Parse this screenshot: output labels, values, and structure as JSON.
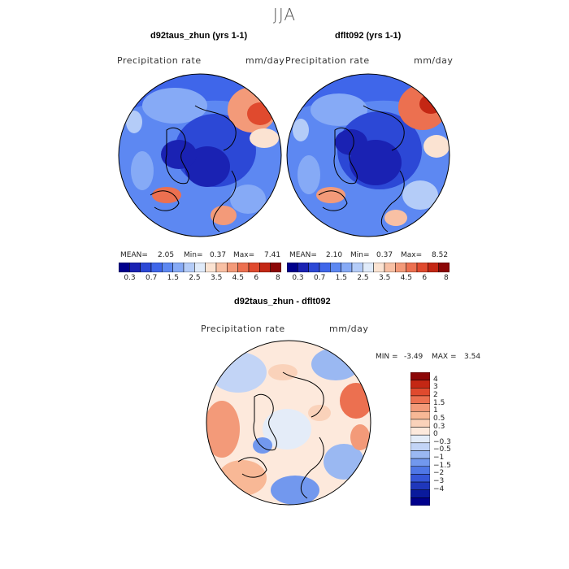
{
  "season": "JJA",
  "panel1": {
    "title": "d92taus_zhun (yrs 1-1)",
    "variable": "Precipitation rate",
    "units": "mm/day",
    "mean_label": "MEAN=",
    "mean": "2.05",
    "min_label": "Min=",
    "min": "0.37",
    "max_label": "Max=",
    "max": "7.41"
  },
  "panel2": {
    "title": "dflt092 (yrs 1-1)",
    "variable": "Precipitation rate",
    "units": "mm/day",
    "mean_label": "MEAN=",
    "mean": "2.10",
    "min_label": "Min=",
    "min": "0.37",
    "max_label": "Max=",
    "max": "8.52"
  },
  "panel3": {
    "title": "d92taus_zhun - dflt092",
    "variable": "Precipitation rate",
    "units": "mm/day",
    "min_label": "MIN =",
    "min": "-3.49",
    "max_label": "MAX =",
    "max": "3.54"
  },
  "abs_colorbar": {
    "colors": [
      "#00008c",
      "#1a22b3",
      "#2c48d6",
      "#3f66ea",
      "#5d88f2",
      "#86aaf6",
      "#b4ccf8",
      "#e0ebfa",
      "#fbe3d2",
      "#f8c0a4",
      "#f39a79",
      "#ec7050",
      "#e04a2e",
      "#c42714",
      "#8c0606"
    ],
    "ticks": [
      "0.3",
      "0.7",
      "1.5",
      "2.5",
      "3.5",
      "4.5",
      "6",
      "8"
    ]
  },
  "diff_colorbar": {
    "colors": [
      "#8c0606",
      "#c42714",
      "#e04a2e",
      "#ec7050",
      "#f39a79",
      "#f8b896",
      "#fad2ba",
      "#fde9dc",
      "#e4ecf8",
      "#c2d4f6",
      "#9ab8f2",
      "#7298ee",
      "#4f77e6",
      "#3556d8",
      "#1f37bb",
      "#0a1a9c",
      "#00008c"
    ],
    "ticks": [
      "4",
      "3",
      "2",
      "1.5",
      "1",
      "0.5",
      "0.3",
      "0",
      "−0.3",
      "−0.5",
      "−1",
      "−1.5",
      "−2",
      "−3",
      "−4"
    ]
  }
}
